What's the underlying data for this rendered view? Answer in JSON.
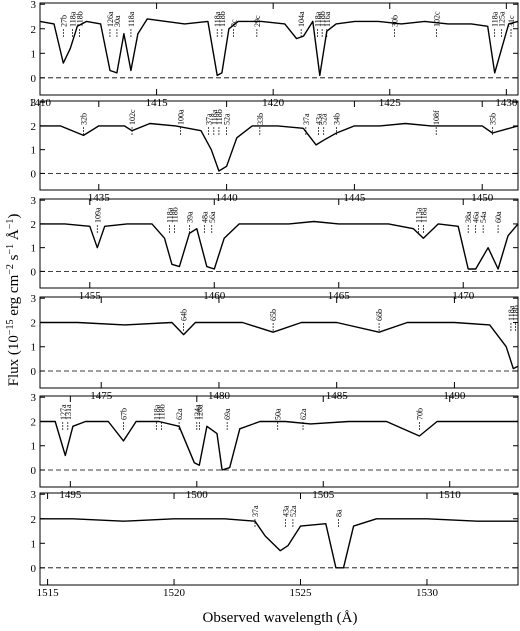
{
  "figure": {
    "xlabel": "Observed wavelength (Å)",
    "ylabel_parts": [
      "Flux (10",
      "−15",
      " erg cm",
      "−2",
      " s",
      "−1",
      " Å",
      "−1",
      ")"
    ]
  },
  "chart_data": [
    {
      "type": "line",
      "color": "#000000",
      "xlim": [
        1410,
        1430.5
      ],
      "xticks": [
        1410,
        1415,
        1420,
        1425,
        1430
      ],
      "ylim": [
        -0.7,
        3.05
      ],
      "yticks": [
        0,
        1,
        2,
        3
      ],
      "x": [
        1410,
        1410.6,
        1411.0,
        1411.3,
        1411.6,
        1412.0,
        1412.6,
        1413.0,
        1413.3,
        1413.6,
        1413.9,
        1414.2,
        1414.6,
        1415.4,
        1416.2,
        1417.2,
        1417.6,
        1417.8,
        1418.1,
        1418.5,
        1419.5,
        1420.5,
        1421.0,
        1421.3,
        1421.7,
        1422.0,
        1422.3,
        1422.7,
        1423.5,
        1424.5,
        1425.5,
        1426.5,
        1427.5,
        1428.5,
        1429.2,
        1429.5,
        1429.8,
        1430.1,
        1430.5
      ],
      "values": [
        2.3,
        2.2,
        0.6,
        1.2,
        2.1,
        2.3,
        2.2,
        0.3,
        0.2,
        1.8,
        0.3,
        1.8,
        2.4,
        2.3,
        2.2,
        2.3,
        0.1,
        0.2,
        2.0,
        2.3,
        2.3,
        2.2,
        1.6,
        1.7,
        2.3,
        0.1,
        1.9,
        2.2,
        2.3,
        2.3,
        2.2,
        2.3,
        2.2,
        2.2,
        2.1,
        0.2,
        1.2,
        2.2,
        2.3
      ],
      "lines": [
        {
          "x": 1411.0,
          "label": "27b"
        },
        {
          "x": 1411.4,
          "label": "118a"
        },
        {
          "x": 1411.7,
          "label": "118b"
        },
        {
          "x": 1413.0,
          "label": "126a"
        },
        {
          "x": 1413.3,
          "label": "30a"
        },
        {
          "x": 1413.9,
          "label": "118a"
        },
        {
          "x": 1417.6,
          "label": "118a"
        },
        {
          "x": 1417.8,
          "label": "118b"
        },
        {
          "x": 1418.3,
          "label": "8c"
        },
        {
          "x": 1419.3,
          "label": "29c"
        },
        {
          "x": 1421.2,
          "label": "104a"
        },
        {
          "x": 1421.9,
          "label": "118a"
        },
        {
          "x": 1422.1,
          "label": "118b"
        },
        {
          "x": 1422.3,
          "label": "116a"
        },
        {
          "x": 1425.2,
          "label": "30b"
        },
        {
          "x": 1427.0,
          "label": "102c"
        },
        {
          "x": 1429.5,
          "label": "118a"
        },
        {
          "x": 1429.8,
          "label": "125a"
        },
        {
          "x": 1430.2,
          "label": "31c"
        }
      ]
    },
    {
      "type": "line",
      "color": "#000000",
      "xlim": [
        1432.7,
        1451.4
      ],
      "xticks": [
        1435,
        1440,
        1445,
        1450
      ],
      "ylim": [
        -0.7,
        3.05
      ],
      "yticks": [
        0,
        1,
        2,
        3
      ],
      "x": [
        1432.7,
        1433.5,
        1434.4,
        1435.0,
        1436.0,
        1436.3,
        1437.0,
        1438.0,
        1439.0,
        1439.4,
        1439.7,
        1440.0,
        1440.4,
        1441.0,
        1442.0,
        1443.0,
        1443.5,
        1443.8,
        1444.3,
        1445.0,
        1446.0,
        1447.0,
        1448.0,
        1449.0,
        1450.0,
        1450.4,
        1451.4
      ],
      "values": [
        2.0,
        2.0,
        1.6,
        2.0,
        2.0,
        1.8,
        2.1,
        2.0,
        1.8,
        1.0,
        0.1,
        0.3,
        1.5,
        2.0,
        2.0,
        1.9,
        1.2,
        1.4,
        1.7,
        2.0,
        2.0,
        2.1,
        2.0,
        2.0,
        2.0,
        1.7,
        2.0
      ],
      "lines": [
        {
          "x": 1434.4,
          "label": "32b"
        },
        {
          "x": 1436.3,
          "label": "102c"
        },
        {
          "x": 1438.2,
          "label": "100a"
        },
        {
          "x": 1439.3,
          "label": "37a"
        },
        {
          "x": 1439.5,
          "label": "118a"
        },
        {
          "x": 1439.7,
          "label": "118b"
        },
        {
          "x": 1440.0,
          "label": "52a"
        },
        {
          "x": 1441.3,
          "label": "33b"
        },
        {
          "x": 1443.1,
          "label": "37a"
        },
        {
          "x": 1443.6,
          "label": "43a"
        },
        {
          "x": 1443.8,
          "label": "52a"
        },
        {
          "x": 1444.3,
          "label": "34b"
        },
        {
          "x": 1448.2,
          "label": "108f"
        },
        {
          "x": 1450.4,
          "label": "35b"
        }
      ]
    },
    {
      "type": "line",
      "color": "#000000",
      "xlim": [
        1453,
        1472.2
      ],
      "xticks": [
        1455,
        1460,
        1465,
        1470
      ],
      "ylim": [
        -0.7,
        3.05
      ],
      "yticks": [
        0,
        1,
        2,
        3
      ],
      "x": [
        1453,
        1454,
        1455,
        1455.3,
        1455.6,
        1456.5,
        1457.5,
        1458.0,
        1458.3,
        1458.6,
        1459.0,
        1459.3,
        1459.7,
        1460.0,
        1460.4,
        1461,
        1462,
        1463,
        1464,
        1465,
        1466,
        1467,
        1468,
        1468.4,
        1469,
        1469.8,
        1470.2,
        1470.5,
        1471.0,
        1471.4,
        1471.8,
        1472.2
      ],
      "values": [
        2.0,
        2.0,
        1.9,
        1.0,
        1.9,
        2.0,
        2.0,
        1.4,
        0.3,
        0.2,
        1.6,
        1.8,
        0.2,
        0.1,
        1.4,
        2.0,
        2.0,
        2.0,
        2.1,
        2.0,
        2.0,
        2.0,
        1.8,
        1.4,
        2.0,
        1.9,
        0.1,
        0.1,
        1.0,
        0.1,
        1.5,
        2.0
      ],
      "lines": [
        {
          "x": 1455.3,
          "label": "109a"
        },
        {
          "x": 1458.2,
          "label": "118a"
        },
        {
          "x": 1458.4,
          "label": "118b"
        },
        {
          "x": 1459.0,
          "label": "39a"
        },
        {
          "x": 1459.6,
          "label": "48a"
        },
        {
          "x": 1459.9,
          "label": "56a"
        },
        {
          "x": 1468.2,
          "label": "113a"
        },
        {
          "x": 1468.4,
          "label": "118a"
        },
        {
          "x": 1470.2,
          "label": "38a"
        },
        {
          "x": 1470.5,
          "label": "46a"
        },
        {
          "x": 1470.8,
          "label": "54a"
        },
        {
          "x": 1471.4,
          "label": "60a"
        }
      ]
    },
    {
      "type": "line",
      "color": "#000000",
      "xlim": [
        1472.4,
        1492.7
      ],
      "xticks": [
        1475,
        1480,
        1485,
        1490
      ],
      "ylim": [
        -0.7,
        3.05
      ],
      "yticks": [
        0,
        1,
        2,
        3
      ],
      "x": [
        1472.4,
        1474,
        1476,
        1478,
        1478.5,
        1479,
        1481,
        1482.3,
        1483.5,
        1485,
        1486.8,
        1488,
        1490,
        1491.5,
        1492.2,
        1492.5,
        1492.7
      ],
      "values": [
        2.0,
        2.0,
        1.9,
        2.0,
        1.5,
        2.0,
        2.0,
        1.6,
        2.0,
        2.0,
        1.6,
        2.0,
        2.0,
        1.9,
        1.0,
        0.1,
        0.2
      ],
      "lines": [
        {
          "x": 1478.5,
          "label": "64b"
        },
        {
          "x": 1482.3,
          "label": "65b"
        },
        {
          "x": 1486.8,
          "label": "66b"
        },
        {
          "x": 1492.4,
          "label": "118a"
        },
        {
          "x": 1492.6,
          "label": "118b"
        }
      ]
    },
    {
      "type": "line",
      "color": "#000000",
      "xlim": [
        1493.8,
        1512.7
      ],
      "xticks": [
        1495,
        1500,
        1505,
        1510
      ],
      "ylim": [
        -0.7,
        3.05
      ],
      "yticks": [
        0,
        1,
        2,
        3
      ],
      "x": [
        1493.8,
        1494.4,
        1494.8,
        1495.1,
        1495.6,
        1496.5,
        1497.1,
        1497.6,
        1498.5,
        1499.3,
        1499.9,
        1500.1,
        1500.4,
        1500.8,
        1501.0,
        1501.3,
        1501.7,
        1502.5,
        1503.5,
        1504.5,
        1506,
        1507.5,
        1508.8,
        1509.5,
        1511,
        1512.7
      ],
      "values": [
        2.0,
        2.0,
        0.6,
        1.8,
        2.0,
        2.0,
        1.2,
        2.0,
        2.0,
        1.8,
        0.3,
        0.2,
        1.8,
        1.5,
        0.0,
        0.1,
        1.7,
        2.0,
        2.0,
        1.9,
        2.0,
        2.0,
        1.4,
        2.0,
        2.0,
        2.0
      ],
      "lines": [
        {
          "x": 1494.7,
          "label": "127a"
        },
        {
          "x": 1494.9,
          "label": "131a"
        },
        {
          "x": 1497.1,
          "label": "67b"
        },
        {
          "x": 1498.4,
          "label": "118a"
        },
        {
          "x": 1498.6,
          "label": "118b"
        },
        {
          "x": 1499.3,
          "label": "62a"
        },
        {
          "x": 1500.0,
          "label": "124a"
        },
        {
          "x": 1500.1,
          "label": "126a"
        },
        {
          "x": 1501.2,
          "label": "69a"
        },
        {
          "x": 1503.2,
          "label": "50a"
        },
        {
          "x": 1504.2,
          "label": "62a"
        },
        {
          "x": 1508.8,
          "label": "70b"
        }
      ]
    },
    {
      "type": "line",
      "color": "#000000",
      "xlim": [
        1514.7,
        1533.6
      ],
      "xticks": [
        1515,
        1520,
        1525,
        1530
      ],
      "ylim": [
        -0.7,
        3.05
      ],
      "yticks": [
        0,
        1,
        2,
        3
      ],
      "x": [
        1514.7,
        1516,
        1518,
        1520,
        1522,
        1523.2,
        1523.6,
        1524.2,
        1524.5,
        1525,
        1526,
        1526.4,
        1526.7,
        1527.1,
        1528,
        1530,
        1532,
        1533.6
      ],
      "values": [
        2.0,
        2.0,
        1.9,
        2.0,
        2.0,
        1.9,
        1.3,
        0.7,
        0.9,
        1.7,
        1.8,
        0.0,
        0.0,
        1.7,
        2.0,
        2.0,
        1.9,
        1.9
      ],
      "lines": [
        {
          "x": 1523.2,
          "label": "37a"
        },
        {
          "x": 1524.4,
          "label": "43a"
        },
        {
          "x": 1524.7,
          "label": "52a"
        },
        {
          "x": 1526.5,
          "label": "8a"
        }
      ]
    }
  ]
}
